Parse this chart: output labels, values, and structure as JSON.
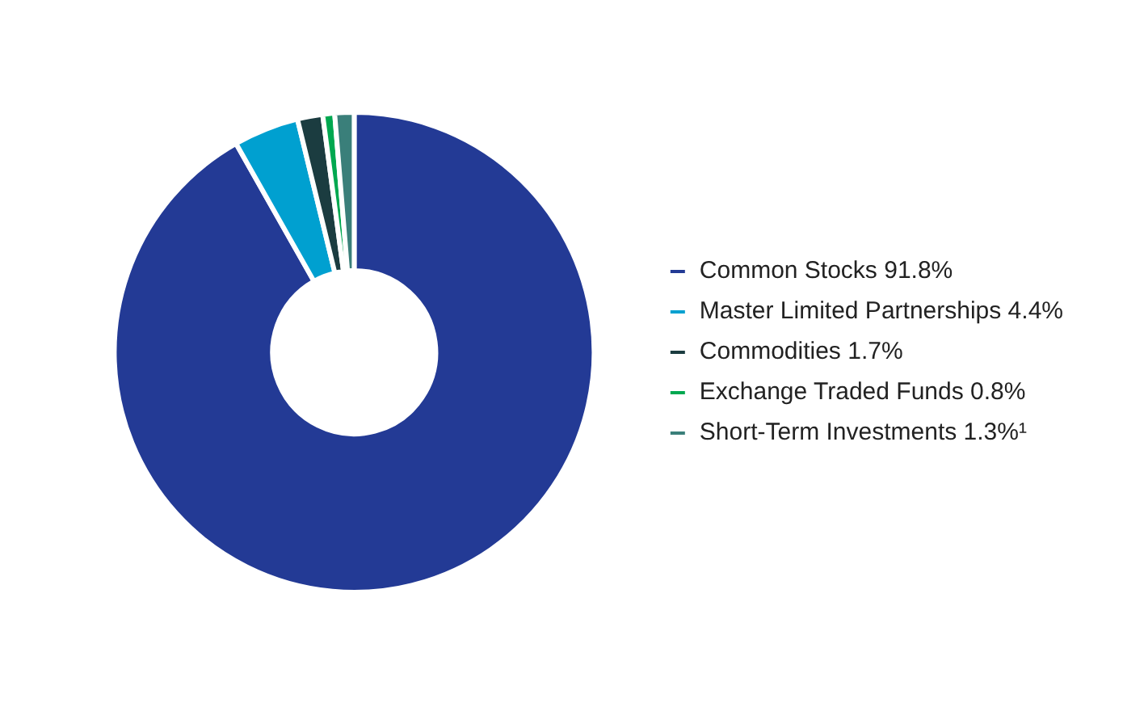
{
  "chart_data": {
    "type": "donut",
    "categories": [
      "Common Stocks 91.8%",
      "Master Limited Partnerships 4.4%",
      "Commodities 1.7%",
      "Exchange Traded Funds 0.8%",
      "Short-Term Investments 1.3%¹"
    ],
    "values": [
      91.8,
      4.4,
      1.7,
      0.8,
      1.3
    ],
    "colors": [
      "#233a95",
      "#00a0d0",
      "#1b3c40",
      "#00a850",
      "#3a7f7a"
    ],
    "legend": "right"
  }
}
